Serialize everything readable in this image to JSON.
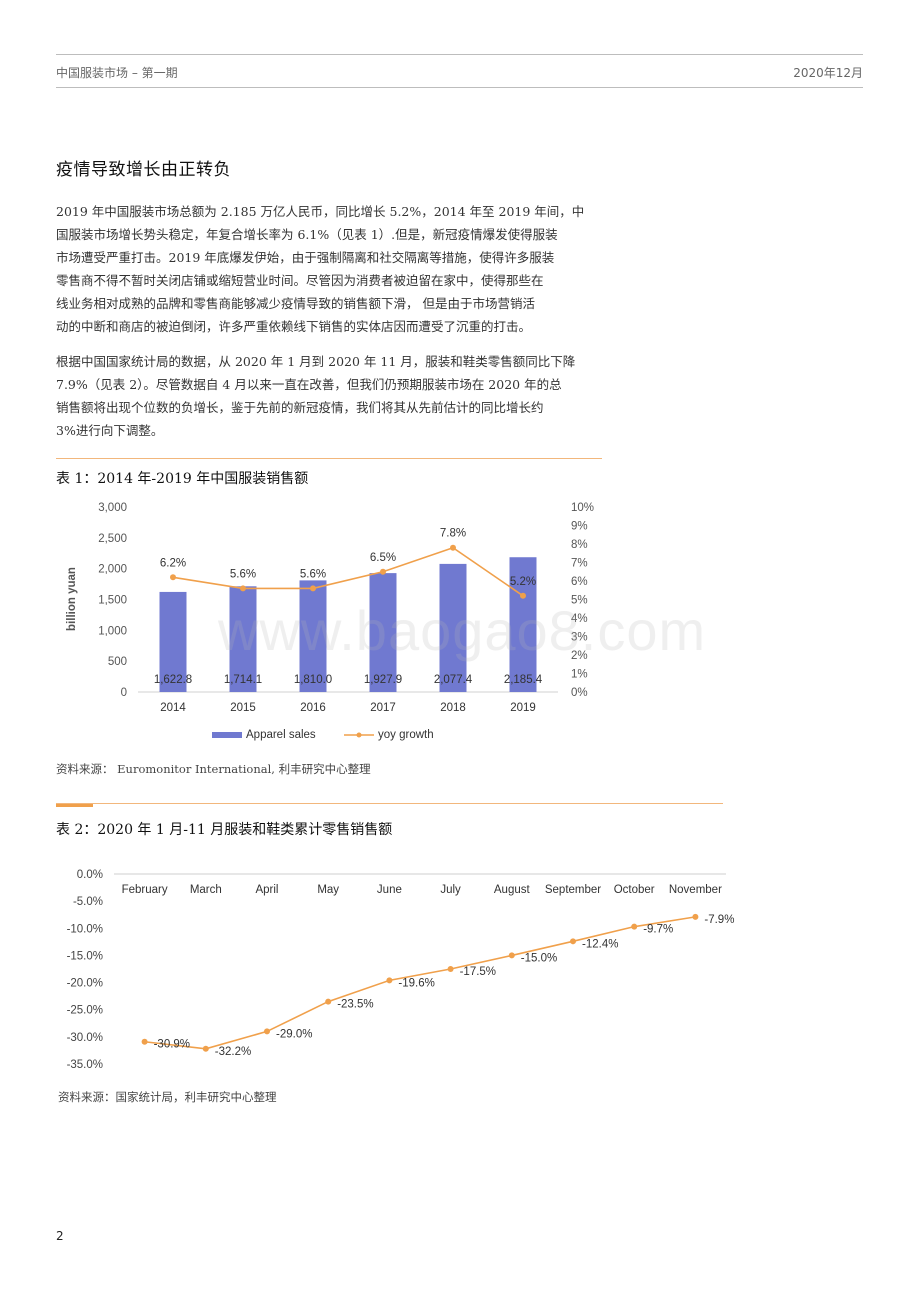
{
  "header": {
    "left": "中国服装市场 – 第一期",
    "right": "2020年12月"
  },
  "section_title": "疫情导致增长由正转负",
  "paragraphs": [
    [
      "2019 年中国服装市场总额为 2.185 万亿人民币，同比增长 5.2%，2014 年至 2019 年间，中",
      "国服装市场增长势头稳定，年复合增长率为 6.1%（见表 1）.但是，新冠疫情爆发使得服装",
      "市场遭受严重打击。2019 年底爆发伊始，由于强制隔离和社交隔离等措施，使得许多服装",
      "零售商不得不暂时关闭店铺或缩短营业时间。尽管因为消费者被迫留在家中，使得那些在",
      "线业务相对成熟的品牌和零售商能够减少疫情导致的销售额下滑， 但是由于市场营销活",
      "动的中断和商店的被迫倒闭，许多严重依赖线下销售的实体店因而遭受了沉重的打击。"
    ],
    [
      "根据中国国家统计局的数据，从 2020 年 1 月到 2020 年 11 月，服装和鞋类零售额同比下降",
      "7.9%（见表 2）。尽管数据自 4 月以来一直在改善，但我们仍预期服装市场在 2020 年的总",
      "销售额将出现个位数的负增长，鉴于先前的新冠疫情，我们将其从先前估计的同比增长约",
      "3%进行向下调整。"
    ]
  ],
  "chart1_caption": "表 1：2014 年-2019 年中国服装销售额",
  "chart1_source": "资料来源： Euromonitor International, 利丰研究中心整理",
  "chart2_caption": "表 2：2020 年 1 月-11 月服装和鞋类累计零售销售额",
  "chart2_source": "资料来源：国家统计局，利丰研究中心整理",
  "watermark": "www.baogao8.com",
  "page_number": "2",
  "colors": {
    "bar": "#7079d0",
    "line": "#f0a04b",
    "rule": "#f2b77c"
  },
  "chart_data": [
    {
      "type": "bar",
      "title": "表 1：2014 年-2019 年中国服装销售额",
      "categories": [
        "2014",
        "2015",
        "2016",
        "2017",
        "2018",
        "2019"
      ],
      "ylabel": "billion yuan",
      "ylim": [
        0,
        3000
      ],
      "yticks": [
        "3,000",
        "2,500",
        "2,000",
        "1,500",
        "1,000",
        "500",
        "0"
      ],
      "y2lim": [
        0,
        10
      ],
      "y2ticks": [
        "10%",
        "9%",
        "8%",
        "7%",
        "6%",
        "5%",
        "4%",
        "3%",
        "2%",
        "1%",
        "0%"
      ],
      "series": [
        {
          "name": "Apparel sales",
          "type": "bar",
          "values": [
            1622.8,
            1714.1,
            1810.0,
            1927.9,
            2077.4,
            2185.4
          ],
          "labels": [
            "1,622.8",
            "1,714.1",
            "1,810.0",
            "1,927.9",
            "2,077.4",
            "2,185.4"
          ]
        },
        {
          "name": "yoy growth",
          "type": "line",
          "axis": "right",
          "values": [
            6.2,
            5.6,
            5.6,
            6.5,
            7.8,
            5.2
          ],
          "labels": [
            "6.2%",
            "5.6%",
            "5.6%",
            "6.5%",
            "7.8%",
            "5.2%"
          ]
        }
      ],
      "legend": "bottom",
      "grid": false
    },
    {
      "type": "line",
      "title": "表 2：2020 年 1 月-11 月服装和鞋类累计零售销售额",
      "categories": [
        "February",
        "March",
        "April",
        "May",
        "June",
        "July",
        "August",
        "September",
        "October",
        "November"
      ],
      "values": [
        -30.9,
        -32.2,
        -29.0,
        -23.5,
        -19.6,
        -17.5,
        -15.0,
        -12.4,
        -9.7,
        -7.9
      ],
      "labels": [
        "-30.9%",
        "-32.2%",
        "-29.0%",
        "-23.5%",
        "-19.6%",
        "-17.5%",
        "-15.0%",
        "-12.4%",
        "-9.7%",
        "-7.9%"
      ],
      "ylim": [
        -35,
        0
      ],
      "yticks": [
        "0.0%",
        "-5.0%",
        "-10.0%",
        "-15.0%",
        "-20.0%",
        "-25.0%",
        "-30.0%",
        "-35.0%"
      ],
      "xaxis_position": "top",
      "legend": "none",
      "grid": false
    }
  ]
}
